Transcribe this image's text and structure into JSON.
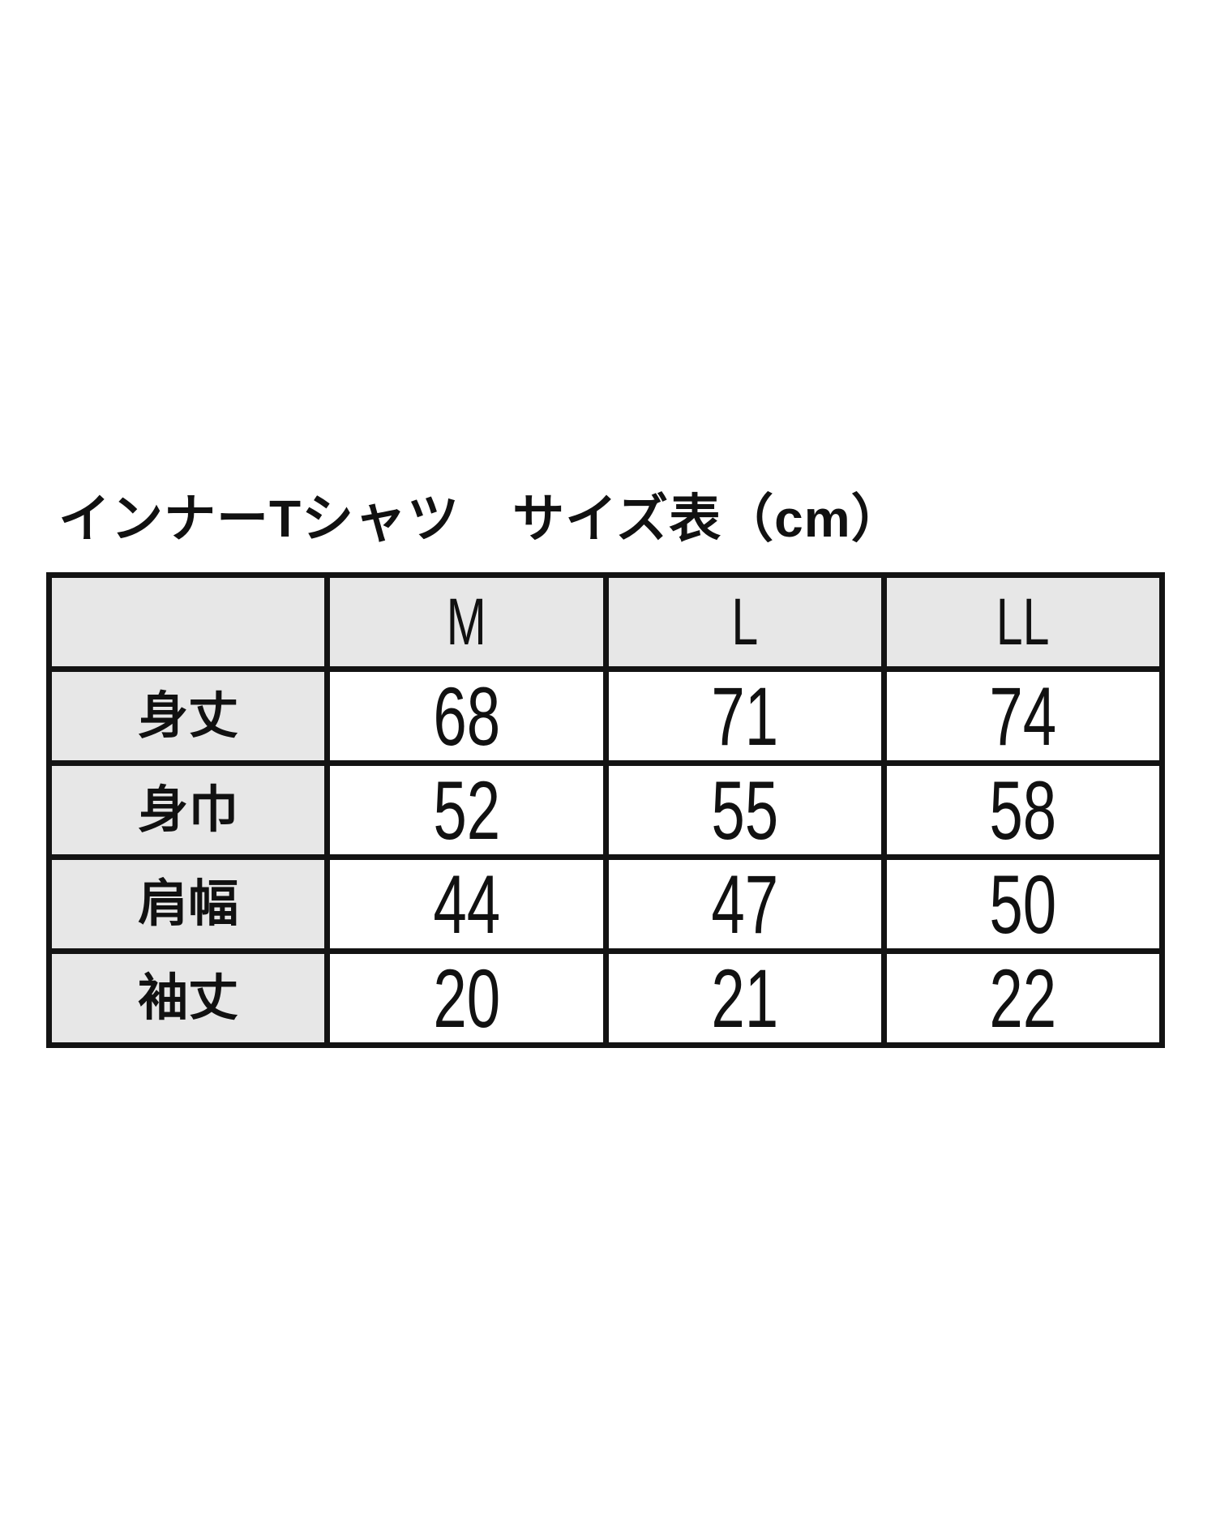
{
  "title": "インナーTシャツ　サイズ表（cm）",
  "table": {
    "corner_label": "",
    "columns": [
      "M",
      "L",
      "LL"
    ],
    "rows": [
      {
        "label": "身丈",
        "values": [
          "68",
          "71",
          "74"
        ]
      },
      {
        "label": "身巾",
        "values": [
          "52",
          "55",
          "58"
        ]
      },
      {
        "label": "肩幅",
        "values": [
          "44",
          "47",
          "50"
        ]
      },
      {
        "label": "袖丈",
        "values": [
          "20",
          "21",
          "22"
        ]
      }
    ],
    "colors": {
      "header_bg": "#e7e7e7",
      "cell_bg": "#ffffff",
      "border": "#131313",
      "text": "#111111"
    }
  },
  "chart_data": {
    "type": "table",
    "title": "インナーTシャツ　サイズ表（cm）",
    "unit": "cm",
    "categories": [
      "M",
      "L",
      "LL"
    ],
    "series": [
      {
        "name": "身丈",
        "values": [
          68,
          71,
          74
        ]
      },
      {
        "name": "身巾",
        "values": [
          52,
          55,
          58
        ]
      },
      {
        "name": "肩幅",
        "values": [
          44,
          47,
          50
        ]
      },
      {
        "name": "袖丈",
        "values": [
          20,
          21,
          22
        ]
      }
    ],
    "layout": {
      "header_row_shaded": true,
      "label_column_shaded": true,
      "grid": true
    }
  }
}
